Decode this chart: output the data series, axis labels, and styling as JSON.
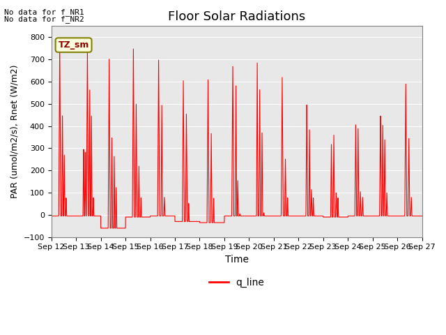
{
  "title": "Floor Solar Radiations",
  "xlabel": "Time",
  "ylabel": "PAR (umol/m2/s), Rnet (W/m2)",
  "ylim": [
    -100,
    850
  ],
  "yticks": [
    -100,
    0,
    100,
    200,
    300,
    400,
    500,
    600,
    700,
    800
  ],
  "xtick_labels": [
    "Sep 12",
    "Sep 13",
    "Sep 14",
    "Sep 15",
    "Sep 16",
    "Sep 17",
    "Sep 18",
    "Sep 19",
    "Sep 20",
    "Sep 21",
    "Sep 22",
    "Sep 23",
    "Sep 24",
    "Sep 25",
    "Sep 26",
    "Sep 27"
  ],
  "line_color": "red",
  "line_label": "q_line",
  "legend_label_tz": "TZ_sm",
  "no_data_text1": "No data for f_NR1",
  "no_data_text2": "No data for f_NR2",
  "background_color": "#e8e8e8",
  "legend_line_color": "red",
  "title_fontsize": 13,
  "ylabel_fontsize": 9,
  "xlabel_fontsize": 10,
  "tick_fontsize": 8,
  "no_data_fontsize": 8,
  "tz_fontsize": 9,
  "legend_fontsize": 10,
  "days_data": [
    {
      "spikes": [
        {
          "rise": 0.3,
          "peak": 780,
          "fall": 0.38
        },
        {
          "rise": 0.42,
          "peak": 460,
          "fall": 0.48
        },
        {
          "rise": 0.5,
          "peak": 270,
          "fall": 0.55
        },
        {
          "rise": 0.58,
          "peak": 80,
          "fall": 0.62
        }
      ],
      "base": -5
    },
    {
      "spikes": [
        {
          "rise": 0.28,
          "peak": 300,
          "fall": 0.33
        },
        {
          "rise": 0.35,
          "peak": 285,
          "fall": 0.4
        },
        {
          "rise": 0.42,
          "peak": 760,
          "fall": 0.5
        },
        {
          "rise": 0.53,
          "peak": 565,
          "fall": 0.58
        },
        {
          "rise": 0.6,
          "peak": 450,
          "fall": 0.65
        },
        {
          "rise": 0.68,
          "peak": 80,
          "fall": 0.72
        }
      ],
      "base": -5
    },
    {
      "spikes": [
        {
          "rise": 0.3,
          "peak": 715,
          "fall": 0.38
        },
        {
          "rise": 0.42,
          "peak": 360,
          "fall": 0.48
        },
        {
          "rise": 0.52,
          "peak": 265,
          "fall": 0.57
        },
        {
          "rise": 0.6,
          "peak": 125,
          "fall": 0.65
        }
      ],
      "base": -60
    },
    {
      "spikes": [
        {
          "rise": 0.28,
          "peak": 760,
          "fall": 0.36
        },
        {
          "rise": 0.4,
          "peak": 500,
          "fall": 0.47
        },
        {
          "rise": 0.52,
          "peak": 220,
          "fall": 0.57
        },
        {
          "rise": 0.61,
          "peak": 80,
          "fall": 0.65
        }
      ],
      "base": -10
    },
    {
      "spikes": [
        {
          "rise": 0.3,
          "peak": 710,
          "fall": 0.38
        },
        {
          "rise": 0.44,
          "peak": 510,
          "fall": 0.5
        },
        {
          "rise": 0.55,
          "peak": 80,
          "fall": 0.6
        }
      ],
      "base": -5
    },
    {
      "spikes": [
        {
          "rise": 0.3,
          "peak": 615,
          "fall": 0.38
        },
        {
          "rise": 0.43,
          "peak": 455,
          "fall": 0.5
        },
        {
          "rise": 0.54,
          "peak": 55,
          "fall": 0.58
        }
      ],
      "base": -30
    },
    {
      "spikes": [
        {
          "rise": 0.3,
          "peak": 620,
          "fall": 0.38
        },
        {
          "rise": 0.44,
          "peak": 380,
          "fall": 0.5
        },
        {
          "rise": 0.55,
          "peak": 80,
          "fall": 0.59
        }
      ],
      "base": -35
    },
    {
      "spikes": [
        {
          "rise": 0.3,
          "peak": 680,
          "fall": 0.38
        },
        {
          "rise": 0.44,
          "peak": 600,
          "fall": 0.5
        },
        {
          "rise": 0.52,
          "peak": 155,
          "fall": 0.57
        },
        {
          "rise": 0.61,
          "peak": 5,
          "fall": 0.65
        }
      ],
      "base": -5
    },
    {
      "spikes": [
        {
          "rise": 0.3,
          "peak": 700,
          "fall": 0.36
        },
        {
          "rise": 0.4,
          "peak": 580,
          "fall": 0.46
        },
        {
          "rise": 0.5,
          "peak": 370,
          "fall": 0.55
        },
        {
          "rise": 0.58,
          "peak": 10,
          "fall": 0.62
        }
      ],
      "base": -5
    },
    {
      "spikes": [
        {
          "rise": 0.3,
          "peak": 630,
          "fall": 0.38
        },
        {
          "rise": 0.44,
          "peak": 260,
          "fall": 0.5
        },
        {
          "rise": 0.54,
          "peak": 80,
          "fall": 0.58
        }
      ],
      "base": -5
    },
    {
      "spikes": [
        {
          "rise": 0.3,
          "peak": 500,
          "fall": 0.37
        },
        {
          "rise": 0.42,
          "peak": 385,
          "fall": 0.47
        },
        {
          "rise": 0.5,
          "peak": 115,
          "fall": 0.55
        },
        {
          "rise": 0.58,
          "peak": 80,
          "fall": 0.62
        }
      ],
      "base": -5
    },
    {
      "spikes": [
        {
          "rise": 0.3,
          "peak": 325,
          "fall": 0.36
        },
        {
          "rise": 0.4,
          "peak": 370,
          "fall": 0.46
        },
        {
          "rise": 0.5,
          "peak": 100,
          "fall": 0.55
        },
        {
          "rise": 0.58,
          "peak": 80,
          "fall": 0.62
        }
      ],
      "base": -10
    },
    {
      "spikes": [
        {
          "rise": 0.28,
          "peak": 410,
          "fall": 0.35
        },
        {
          "rise": 0.38,
          "peak": 400,
          "fall": 0.44
        },
        {
          "rise": 0.48,
          "peak": 105,
          "fall": 0.53
        },
        {
          "rise": 0.57,
          "peak": 80,
          "fall": 0.62
        }
      ],
      "base": -5
    },
    {
      "spikes": [
        {
          "rise": 0.28,
          "peak": 450,
          "fall": 0.35
        },
        {
          "rise": 0.38,
          "peak": 415,
          "fall": 0.44
        },
        {
          "rise": 0.46,
          "peak": 350,
          "fall": 0.52
        },
        {
          "rise": 0.55,
          "peak": 100,
          "fall": 0.6
        }
      ],
      "base": -5
    },
    {
      "spikes": [
        {
          "rise": 0.3,
          "peak": 600,
          "fall": 0.38
        },
        {
          "rise": 0.43,
          "peak": 345,
          "fall": 0.5
        },
        {
          "rise": 0.54,
          "peak": 80,
          "fall": 0.59
        }
      ],
      "base": -5
    }
  ]
}
